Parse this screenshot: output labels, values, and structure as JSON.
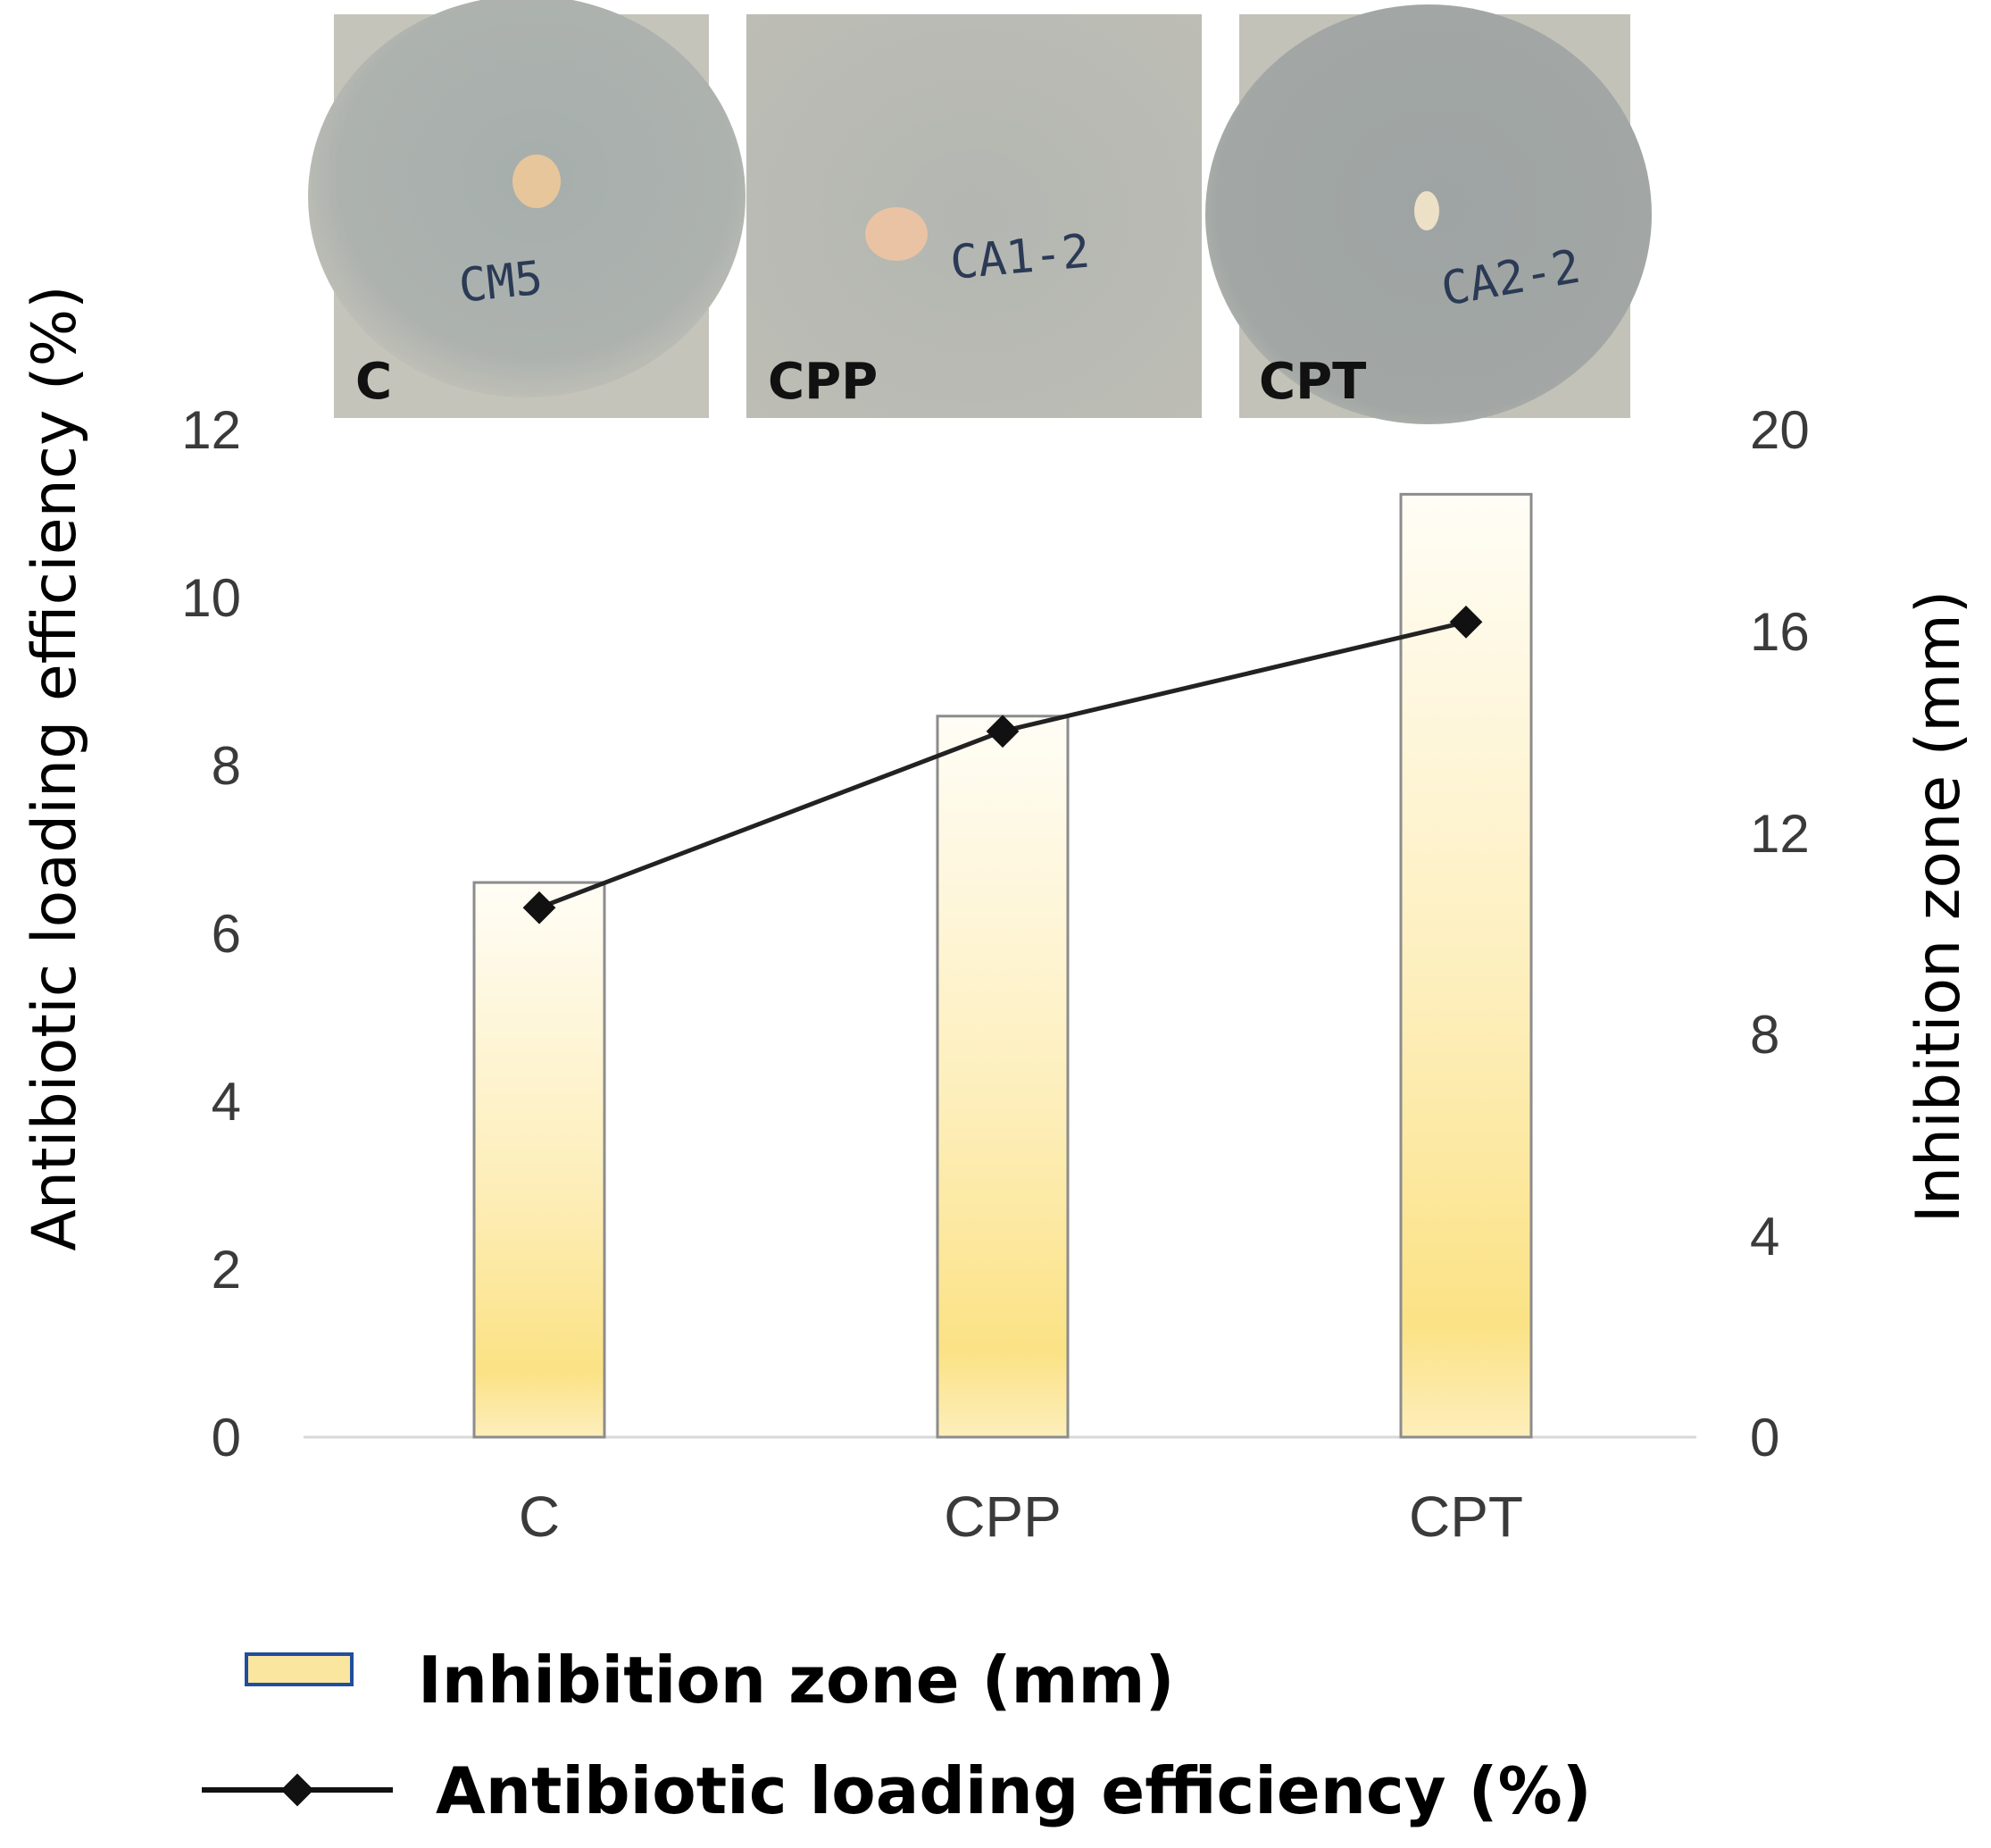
{
  "chart_data": {
    "type": "bar",
    "categories": [
      "C",
      "CPP",
      "CPT"
    ],
    "series": [
      {
        "name": "Inhibition zone (mm)",
        "kind": "bar",
        "axis": "right",
        "values": [
          11,
          14.3,
          18.7
        ]
      },
      {
        "name": "Antibiotic loading efficiency (%)",
        "kind": "line",
        "axis": "left",
        "values": [
          6.3,
          8.4,
          9.7
        ]
      }
    ],
    "left_axis": {
      "label": "Antibiotic loading efficiency (%)",
      "ylim": [
        0,
        12
      ],
      "ticks": [
        "0",
        "2",
        "4",
        "6",
        "8",
        "10",
        "12"
      ]
    },
    "right_axis": {
      "label": "Inhibition zone (mm)",
      "ylim": [
        0,
        20
      ],
      "ticks": [
        "0",
        "4",
        "8",
        "12",
        "16",
        "20"
      ]
    },
    "legend": {
      "placement": "bottom",
      "items": [
        "Inhibition zone (mm)",
        "Antibiotic loading efficiency (%)"
      ]
    },
    "grid": false
  },
  "photos": {
    "panels": [
      {
        "label": "C",
        "handwriting": "CM5"
      },
      {
        "label": "CPP",
        "handwriting": "CA1-2"
      },
      {
        "label": "CPT",
        "handwriting": "CA2-2"
      }
    ]
  },
  "colors": {
    "bar_top": "#fffdf6",
    "bar_bottom": "#fbe285",
    "bar_stroke": "#8c8c8c",
    "line": "#222222",
    "legend_swatch_fill": "#fbe6a0",
    "legend_swatch_stroke": "#1f4e9c",
    "axis": "#d9d9d9",
    "photo_bg": "#c5c4bb",
    "photo_zone": "#a9adaa"
  }
}
